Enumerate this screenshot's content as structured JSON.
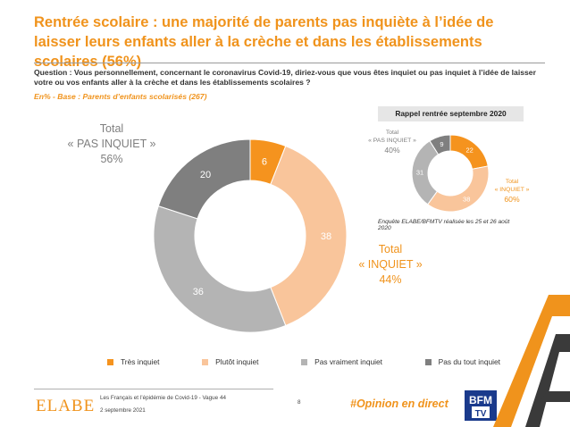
{
  "header": {
    "title": "Rentrée scolaire : une majorité de parents pas inquiète à l’idée de laisser leurs enfants aller à la crèche et dans les établissements scolaires (56%)",
    "question": "Question : Vous personnellement, concernant le coronavirus Covid-19, diriez-vous que vous êtes inquiet ou pas inquiet à l’idée de laisser votre ou vos enfants aller à la crèche et dans les établissements scolaires ?",
    "base": "En% - Base : Parents d’enfants scolarisés (267)"
  },
  "totals": {
    "pas_label": "Total",
    "pas_sub": "« PAS INQUIET »",
    "pas_value": "56%",
    "inq_label": "Total",
    "inq_sub": "« INQUIET »",
    "inq_value": "44%"
  },
  "inset": {
    "heading": "Rappel rentrée septembre 2020",
    "pas_label": "Total",
    "pas_sub": "« PAS INQUIET »",
    "pas_value": "40%",
    "inq_label": "Total",
    "inq_sub": "« INQUIET »",
    "inq_value": "60%",
    "note": "Enquête ELABE/BFMTV réalisée les 25 et 26 août 2020"
  },
  "chart_data": [
    {
      "type": "pie",
      "variant": "donut",
      "categories": [
        "Très inquiet",
        "Plutôt inquiet",
        "Pas vraiment inquiet",
        "Pas du tout inquiet"
      ],
      "values": [
        6,
        38,
        36,
        20
      ],
      "colors": [
        "#f5931e",
        "#f9c59b",
        "#b4b4b4",
        "#7f7f7f"
      ],
      "label_colors": [
        "#ffffff",
        "#ffffff",
        "#ffffff",
        "#ffffff"
      ],
      "legend_position": "bottom"
    },
    {
      "type": "pie",
      "variant": "donut",
      "title": "Rappel rentrée septembre 2020",
      "categories": [
        "Très inquiet",
        "Plutôt inquiet",
        "Pas vraiment inquiet",
        "Pas du tout inquiet"
      ],
      "values": [
        22,
        38,
        31,
        9
      ],
      "colors": [
        "#f5931e",
        "#f9c59b",
        "#b4b4b4",
        "#7f7f7f"
      ]
    }
  ],
  "footer": {
    "logo": "ELABE",
    "source": "Les Français et l’épidémie de Covid-19 - Vague 44",
    "date": "2 septembre 2021",
    "page": "8",
    "hashtag": "#Opinion en direct",
    "bfm_logo": "BFM TV",
    "accent": "#f0931c"
  }
}
